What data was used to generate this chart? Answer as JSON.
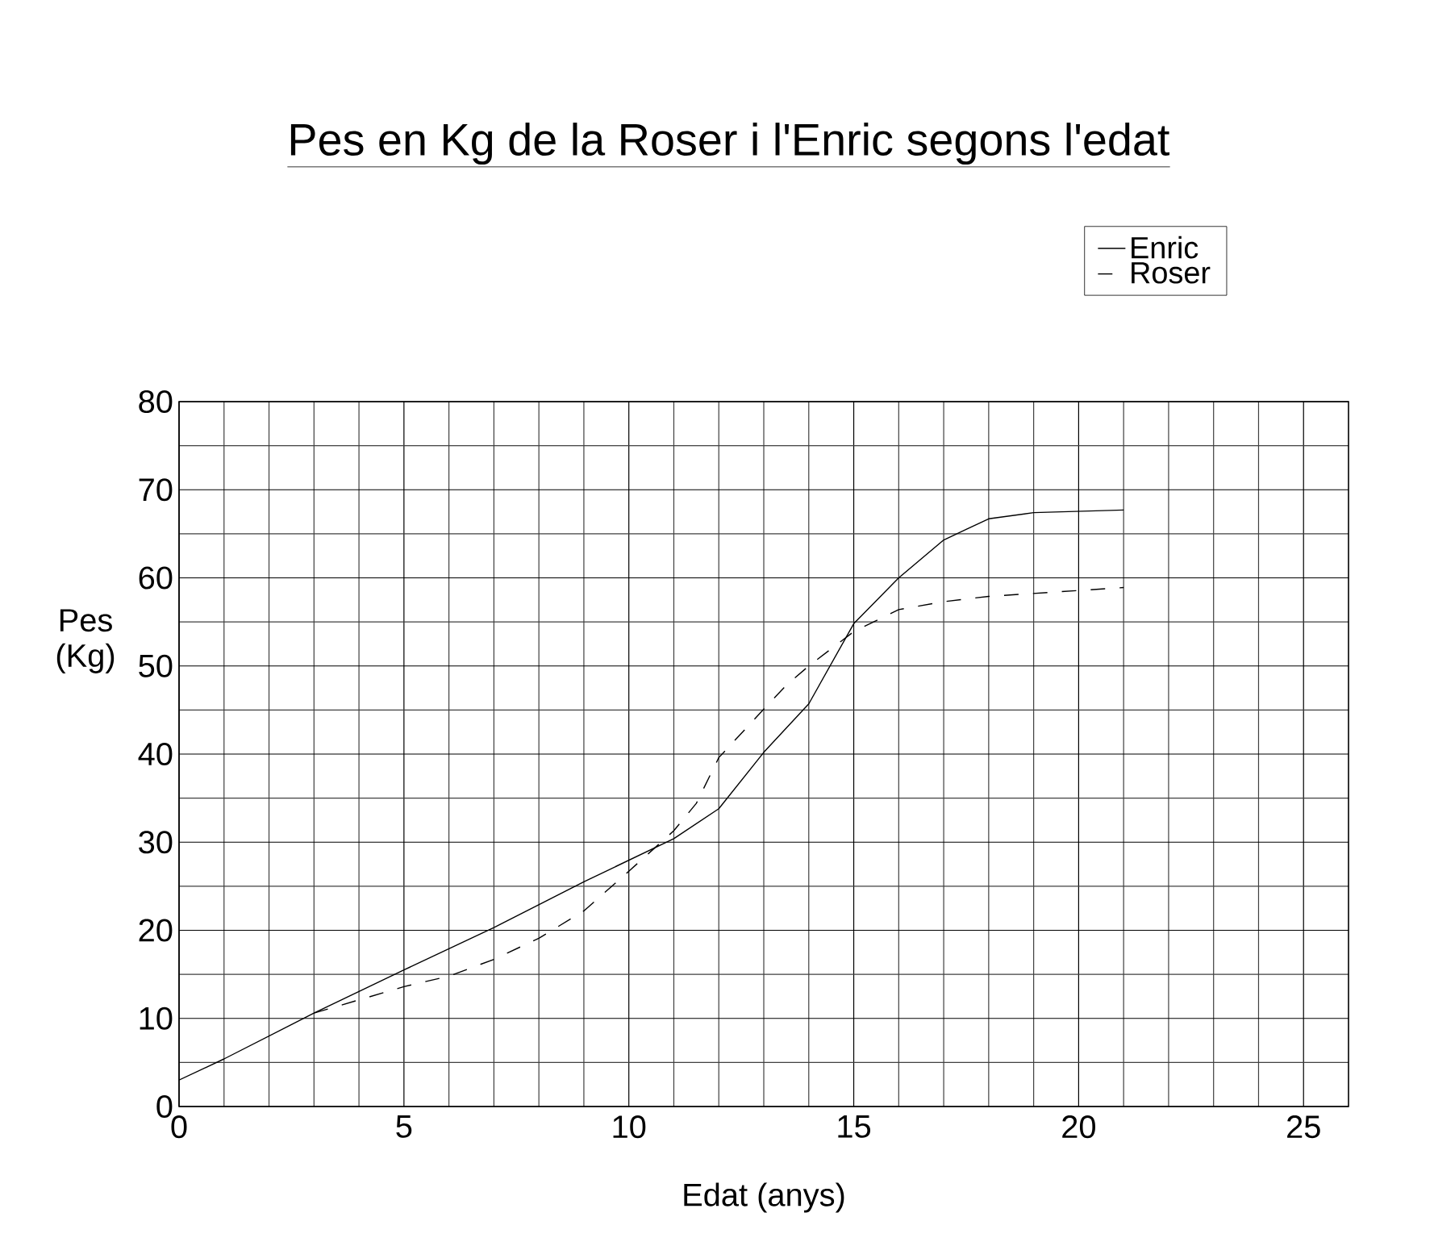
{
  "chart_data": {
    "type": "line",
    "title": "Pes en Kg de la Roser i l'Enric segons l'edat",
    "xlabel": "Edat (anys)",
    "ylabel": "Pes (Kg)",
    "xlim": [
      0,
      26
    ],
    "ylim": [
      0,
      80
    ],
    "xticks": [
      0,
      5,
      10,
      15,
      20,
      25
    ],
    "yticks": [
      0,
      10,
      20,
      30,
      40,
      50,
      60,
      70,
      80
    ],
    "grid": true,
    "legend": "top right",
    "series": [
      {
        "name": "Enric",
        "color": "#000000",
        "line_style": "solid",
        "x": [
          0,
          1,
          3,
          5,
          7,
          9,
          11,
          12,
          13,
          14,
          15,
          16,
          17,
          17.5,
          18,
          19,
          21
        ],
        "values": [
          3,
          5.4,
          10.6,
          15.5,
          20.3,
          25.5,
          30.4,
          33.8,
          40.2,
          45.7,
          54.8,
          60,
          64.3,
          65.5,
          66.7,
          67.4,
          67.7
        ]
      },
      {
        "name": "Roser",
        "color": "#000000",
        "line_style": "dashed",
        "x": [
          3,
          4,
          5,
          6,
          7,
          8,
          9,
          10,
          11,
          11.5,
          12,
          13,
          13.5,
          14,
          15,
          16,
          17,
          18,
          21
        ],
        "values": [
          10.6,
          12.1,
          13.6,
          14.8,
          16.7,
          19.1,
          22.2,
          26.7,
          31.3,
          34.4,
          39.6,
          45.1,
          47.8,
          50,
          53.9,
          56.4,
          57.3,
          57.9,
          58.9
        ]
      }
    ]
  }
}
